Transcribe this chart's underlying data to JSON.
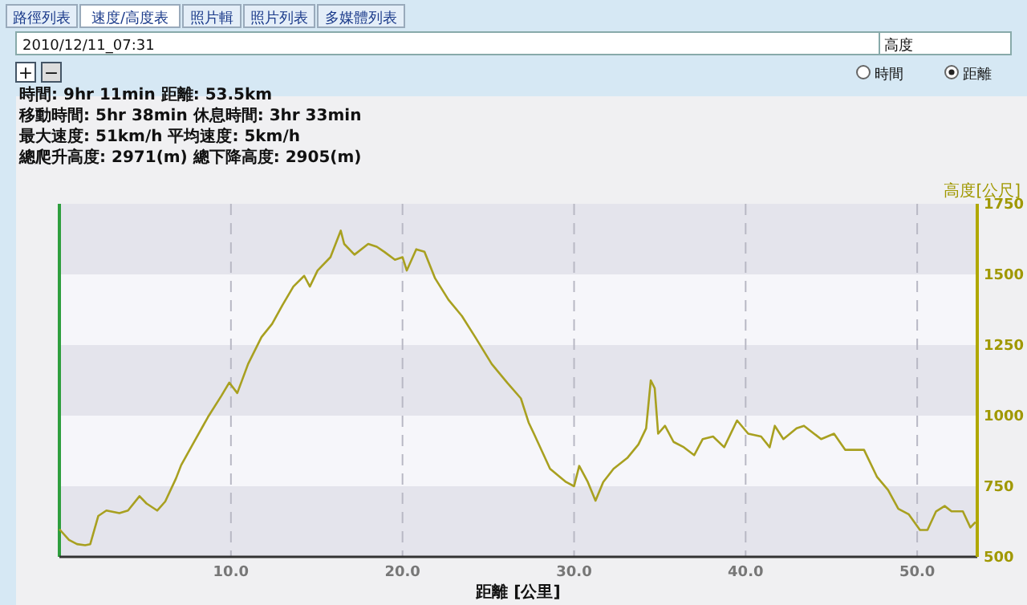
{
  "chart_data": {
    "type": "line",
    "xlabel": "距離 [公里]",
    "ylabel": "高度[公尺]",
    "xlim": [
      0,
      53.5
    ],
    "xticks": [
      {
        "value": 10,
        "label": "10.0"
      },
      {
        "value": 20,
        "label": "20.0"
      },
      {
        "value": 30,
        "label": "30.0"
      },
      {
        "value": 40,
        "label": "40.0"
      },
      {
        "value": 50,
        "label": "50.0"
      }
    ],
    "ylim": [
      500,
      1750
    ],
    "yticks": [
      500,
      750,
      1000,
      1250,
      1500,
      1750
    ],
    "grid": true,
    "marker": "none",
    "line_style": "solid",
    "annotations": [
      "路徑列表",
      "速度/高度表",
      "照片輯",
      "照片列表",
      "多媒體列表",
      "2010/12/11_07:31",
      "高度",
      "時間",
      "距離",
      "時間: 9hr 11min  距離: 53.5km",
      "移動時間: 5hr 38min  休息時間: 3hr 33min",
      "最大速度: 51km/h  平均速度: 5km/h",
      "總爬升高度: 2971(m)  總下降高度: 2905(m)",
      "+",
      "−"
    ],
    "series": [
      {
        "color": "#a8a020",
        "x": [
          0,
          0.56,
          1.03,
          1.5,
          1.8,
          2.27,
          2.74,
          3.5,
          4.0,
          4.67,
          5.08,
          5.7,
          6.17,
          6.8,
          7.1,
          7.88,
          8.66,
          9.44,
          9.9,
          10.37,
          11.0,
          11.78,
          12.4,
          13.0,
          13.64,
          14.27,
          14.6,
          15.05,
          15.8,
          16.4,
          16.6,
          17.2,
          18.0,
          18.5,
          18.94,
          19.56,
          20.0,
          20.25,
          20.8,
          21.28,
          21.9,
          22.68,
          23.46,
          24.24,
          25.2,
          26.1,
          26.9,
          27.35,
          27.66,
          28.6,
          29.53,
          30.0,
          30.3,
          30.8,
          31.25,
          31.7,
          32.3,
          33.1,
          33.75,
          34.2,
          34.47,
          34.7,
          34.9,
          35.3,
          35.8,
          36.4,
          37.0,
          37.5,
          38.1,
          38.75,
          39.5,
          40.15,
          40.9,
          41.4,
          41.7,
          42.2,
          42.97,
          43.4,
          44.4,
          45.15,
          45.8,
          46.9,
          47.65,
          48.3,
          48.9,
          49.5,
          50.16,
          50.6,
          51.1,
          51.6,
          52.0,
          52.66,
          53.1,
          53.4
        ],
        "values": [
          598,
          560,
          545,
          541,
          545,
          645,
          664,
          655,
          664,
          715,
          689,
          664,
          696,
          778,
          825,
          910,
          995,
          1070,
          1117,
          1080,
          1183,
          1278,
          1325,
          1391,
          1457,
          1495,
          1457,
          1514,
          1561,
          1655,
          1608,
          1570,
          1608,
          1598,
          1580,
          1552,
          1561,
          1514,
          1589,
          1580,
          1486,
          1410,
          1353,
          1278,
          1183,
          1117,
          1061,
          976,
          936,
          812,
          765,
          750,
          822,
          765,
          699,
          765,
          812,
          850,
          898,
          955,
          1125,
          1097,
          936,
          964,
          907,
          888,
          860,
          917,
          926,
          888,
          983,
          936,
          926,
          888,
          964,
          917,
          955,
          964,
          917,
          936,
          879,
          879,
          784,
          737,
          670,
          651,
          595,
          595,
          661,
          680,
          661,
          661,
          604,
          623
        ]
      }
    ]
  }
}
